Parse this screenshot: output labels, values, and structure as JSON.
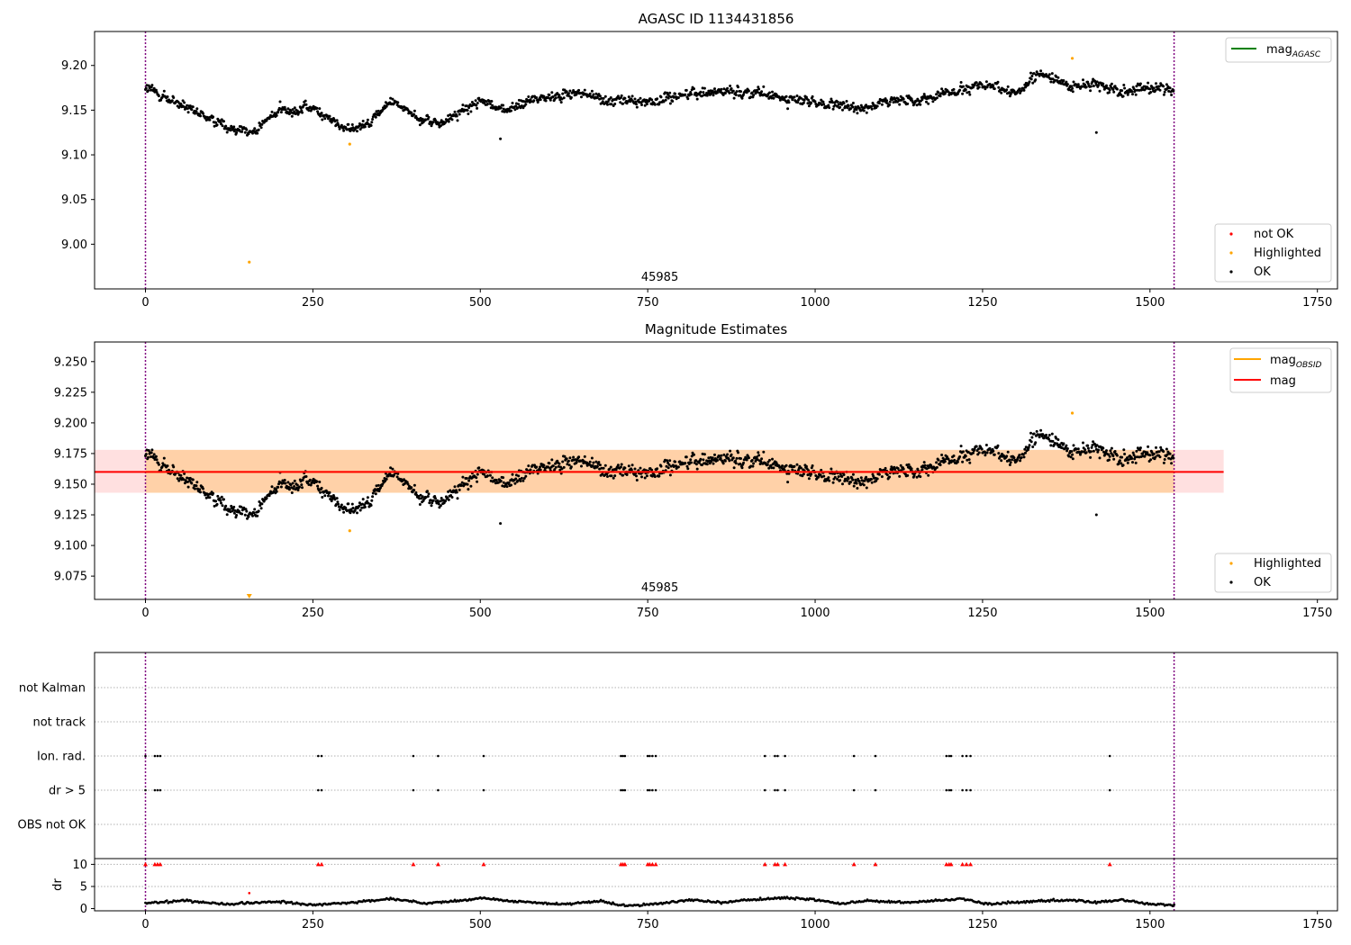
{
  "chart_data": [
    {
      "type": "scatter",
      "title": "AGASC ID 1134431856",
      "xlim": [
        -76,
        1780
      ],
      "ylim": [
        8.95,
        9.238
      ],
      "x_ticks": [
        0,
        250,
        500,
        750,
        1000,
        1250,
        1500,
        1750
      ],
      "y_ticks": [
        9.0,
        9.05,
        9.1,
        9.15,
        9.2
      ],
      "y_tick_labels": [
        "9.00",
        "9.05",
        "9.10",
        "9.15",
        "9.20"
      ],
      "grid": false,
      "obs_boundaries_x": [
        0,
        1536
      ],
      "obs_label": {
        "text": "45985",
        "x": 768
      },
      "legend_upper": {
        "placement": "upper right",
        "entries": [
          {
            "label": "mag",
            "sub": "AGASC",
            "color": "#008000"
          }
        ]
      },
      "legend_lower": {
        "placement": "lower right",
        "entries": [
          {
            "label": "not OK",
            "color": "#ff0000"
          },
          {
            "label": "Highlighted",
            "color": "#ffa500"
          },
          {
            "label": "OK",
            "color": "#000000"
          }
        ]
      },
      "highlighted_points": [
        [
          155,
          8.98
        ],
        [
          305,
          9.112
        ],
        [
          1384,
          9.208
        ]
      ],
      "ok_points_trend": [
        [
          0,
          9.175
        ],
        [
          100,
          9.138
        ],
        [
          160,
          9.125
        ],
        [
          200,
          9.15
        ],
        [
          250,
          9.152
        ],
        [
          300,
          9.128
        ],
        [
          330,
          9.135
        ],
        [
          370,
          9.16
        ],
        [
          410,
          9.14
        ],
        [
          440,
          9.135
        ],
        [
          500,
          9.16
        ],
        [
          540,
          9.15
        ],
        [
          580,
          9.162
        ],
        [
          640,
          9.17
        ],
        [
          700,
          9.16
        ],
        [
          760,
          9.16
        ],
        [
          820,
          9.17
        ],
        [
          880,
          9.172
        ],
        [
          940,
          9.165
        ],
        [
          1000,
          9.158
        ],
        [
          1060,
          9.152
        ],
        [
          1120,
          9.16
        ],
        [
          1180,
          9.165
        ],
        [
          1240,
          9.178
        ],
        [
          1300,
          9.17
        ],
        [
          1340,
          9.192
        ],
        [
          1380,
          9.175
        ],
        [
          1420,
          9.18
        ],
        [
          1460,
          9.172
        ],
        [
          1500,
          9.175
        ],
        [
          1536,
          9.172
        ]
      ],
      "ok_points_noise": 0.009,
      "ok_points_count": 1536,
      "outlier_points": [
        [
          1420,
          9.125
        ],
        [
          530,
          9.118
        ]
      ]
    },
    {
      "type": "scatter",
      "title": "Magnitude Estimates",
      "xlim": [
        -76,
        1780
      ],
      "ylim": [
        9.056,
        9.266
      ],
      "x_ticks": [
        0,
        250,
        500,
        750,
        1000,
        1250,
        1500,
        1750
      ],
      "y_ticks": [
        9.075,
        9.1,
        9.125,
        9.15,
        9.175,
        9.2,
        9.225,
        9.25
      ],
      "y_tick_labels": [
        "9.075",
        "9.100",
        "9.125",
        "9.150",
        "9.175",
        "9.200",
        "9.225",
        "9.250"
      ],
      "grid": false,
      "obs_boundaries_x": [
        0,
        1536
      ],
      "obs_label": {
        "text": "45985",
        "x": 768
      },
      "mag_line": {
        "value": 9.16,
        "x_range": [
          -76,
          1610
        ],
        "band": [
          9.143,
          9.178
        ],
        "color": "#ff0000"
      },
      "mag_obsid": {
        "value": 9.16,
        "x_range": [
          0,
          1536
        ],
        "band": [
          9.143,
          9.178
        ],
        "color": "#ffa500"
      },
      "legend_upper": {
        "placement": "upper right",
        "entries": [
          {
            "label": "mag",
            "sub": "OBSID",
            "color": "#ffa500"
          },
          {
            "label": "mag",
            "sub": "",
            "color": "#ff0000"
          }
        ]
      },
      "legend_lower": {
        "placement": "lower right",
        "entries": [
          {
            "label": "Highlighted",
            "color": "#ffa500"
          },
          {
            "label": "OK",
            "color": "#000000"
          }
        ]
      },
      "highlighted_points": [
        [
          305,
          9.112
        ],
        [
          1384,
          9.208
        ]
      ],
      "clipped_marker": {
        "x": 155,
        "color": "#ffa500"
      }
    },
    {
      "type": "scatter",
      "title": "",
      "xlim": [
        -76,
        1780
      ],
      "categories": [
        "not Kalman",
        "not track",
        "Ion. rad.",
        "dr > 5",
        "OBS not OK"
      ],
      "flag_x": [
        0,
        14,
        18,
        22,
        258,
        263,
        400,
        437,
        505,
        710,
        713,
        716,
        750,
        753,
        757,
        762,
        925,
        940,
        944,
        955,
        1058,
        1090,
        1196,
        1200,
        1203,
        1220,
        1226,
        1232,
        1440
      ],
      "flagged_rows": [
        "Ion. rad.",
        "dr > 5"
      ],
      "grid": "horizontal dotted"
    },
    {
      "type": "line",
      "title": "",
      "ylabel": "dr",
      "xlim": [
        -76,
        1780
      ],
      "ylim": [
        -0.5,
        11.3
      ],
      "x_ticks": [
        0,
        250,
        500,
        750,
        1000,
        1250,
        1500,
        1750
      ],
      "y_ticks": [
        0,
        5,
        10
      ],
      "threshold": 5,
      "dr_trend": [
        [
          0,
          1.2
        ],
        [
          60,
          1.8
        ],
        [
          120,
          1.0
        ],
        [
          200,
          1.6
        ],
        [
          250,
          0.8
        ],
        [
          320,
          1.5
        ],
        [
          370,
          2.2
        ],
        [
          420,
          1.2
        ],
        [
          470,
          1.8
        ],
        [
          500,
          2.4
        ],
        [
          560,
          1.5
        ],
        [
          620,
          1.0
        ],
        [
          680,
          1.6
        ],
        [
          720,
          0.6
        ],
        [
          760,
          1.1
        ],
        [
          820,
          2.0
        ],
        [
          860,
          1.3
        ],
        [
          900,
          2.0
        ],
        [
          960,
          2.4
        ],
        [
          1000,
          2.0
        ],
        [
          1040,
          1.1
        ],
        [
          1080,
          1.8
        ],
        [
          1130,
          1.3
        ],
        [
          1180,
          1.8
        ],
        [
          1220,
          2.2
        ],
        [
          1260,
          1.0
        ],
        [
          1320,
          1.6
        ],
        [
          1380,
          1.9
        ],
        [
          1420,
          1.4
        ],
        [
          1460,
          2.0
        ],
        [
          1500,
          1.0
        ],
        [
          1536,
          0.8
        ]
      ],
      "red_marker_points": [
        [
          0,
          10
        ],
        [
          14,
          10
        ],
        [
          18,
          10
        ],
        [
          22,
          10
        ],
        [
          258,
          10
        ],
        [
          263,
          10
        ],
        [
          400,
          10
        ],
        [
          437,
          10
        ],
        [
          505,
          10
        ],
        [
          710,
          10
        ],
        [
          713,
          10
        ],
        [
          716,
          10
        ],
        [
          750,
          10
        ],
        [
          753,
          10
        ],
        [
          757,
          10
        ],
        [
          762,
          10
        ],
        [
          925,
          10
        ],
        [
          940,
          10
        ],
        [
          944,
          10
        ],
        [
          955,
          10
        ],
        [
          1058,
          10
        ],
        [
          1090,
          10
        ],
        [
          1196,
          10
        ],
        [
          1200,
          10
        ],
        [
          1203,
          10
        ],
        [
          1220,
          10
        ],
        [
          1226,
          10
        ],
        [
          1232,
          10
        ],
        [
          1440,
          10
        ]
      ],
      "highlighted_point": [
        155,
        3.5
      ]
    }
  ]
}
